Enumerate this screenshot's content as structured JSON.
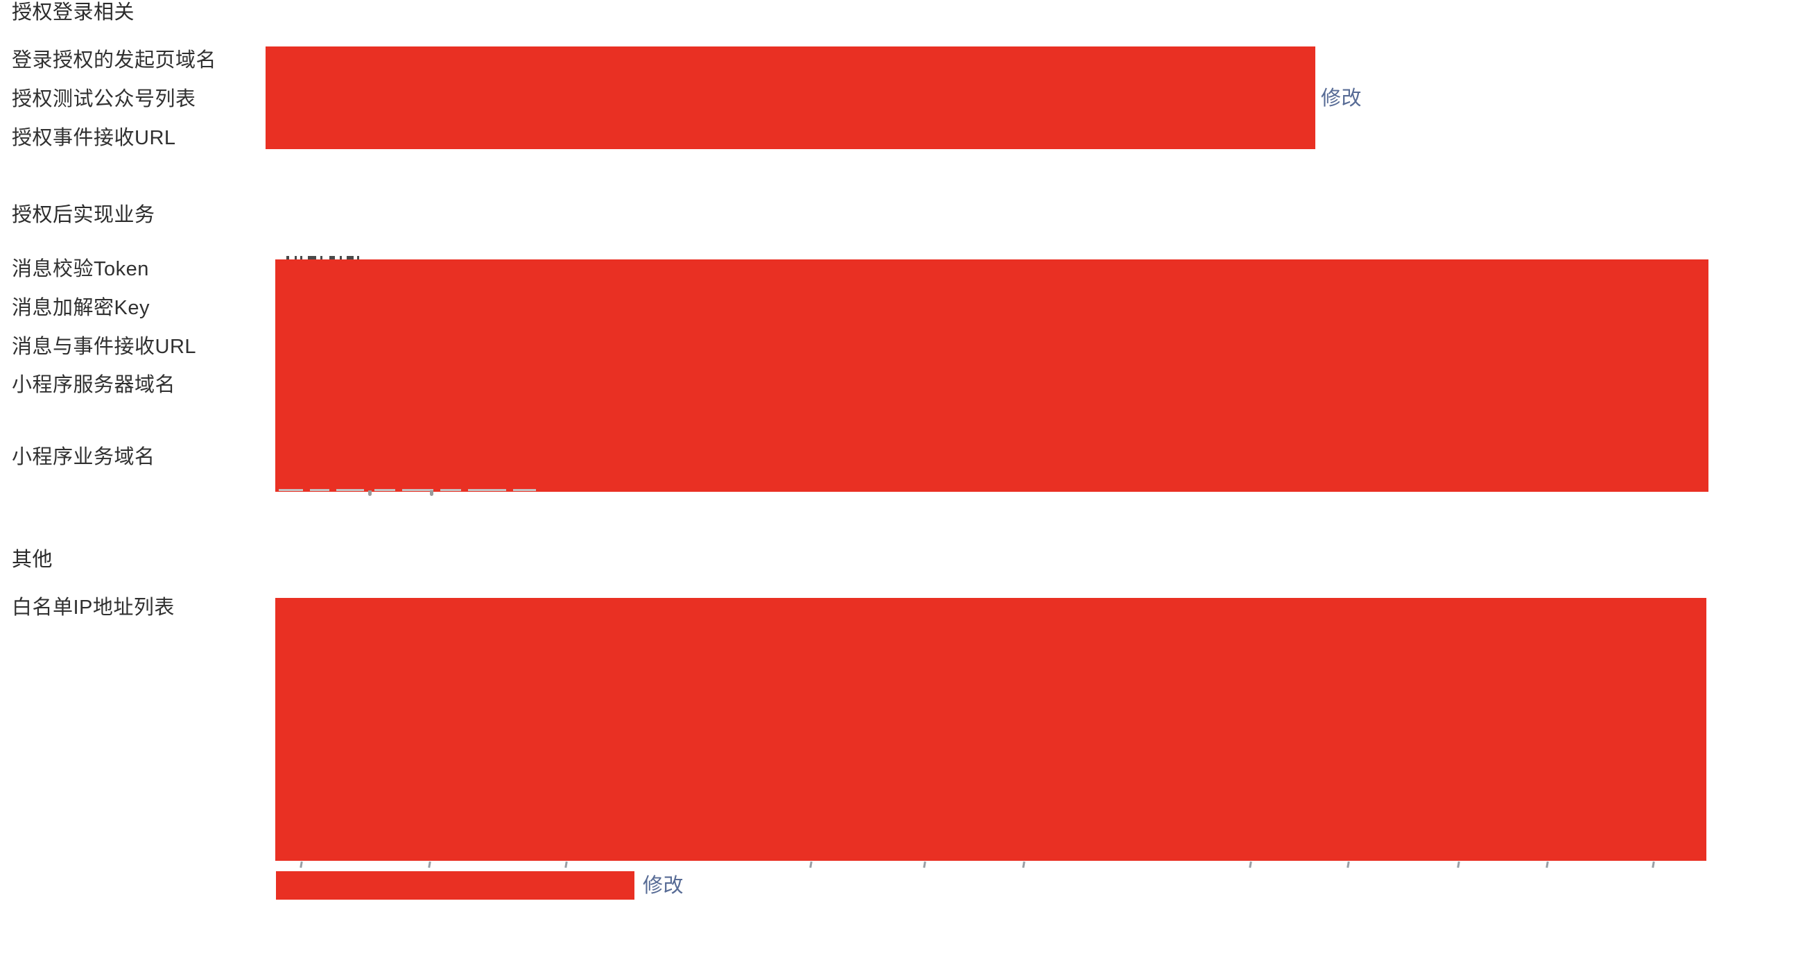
{
  "colors": {
    "redaction_red": "#e93023",
    "link_blue": "#576b95",
    "text_dark": "#303030"
  },
  "sections": [
    {
      "title": "授权登录相关",
      "rows": [
        {
          "label": "登录授权的发起页域名"
        },
        {
          "label": "授权测试公众号列表"
        },
        {
          "label": "授权事件接收URL"
        }
      ],
      "action": "修改"
    },
    {
      "title": "授权后实现业务",
      "rows": [
        {
          "label": "消息校验Token"
        },
        {
          "label": "消息加解密Key"
        },
        {
          "label": "消息与事件接收URL"
        },
        {
          "label": "小程序服务器域名"
        },
        {
          "label": "小程序业务域名"
        }
      ]
    },
    {
      "title": "其他",
      "rows": [
        {
          "label": "白名单IP地址列表"
        }
      ],
      "action": "修改"
    }
  ]
}
